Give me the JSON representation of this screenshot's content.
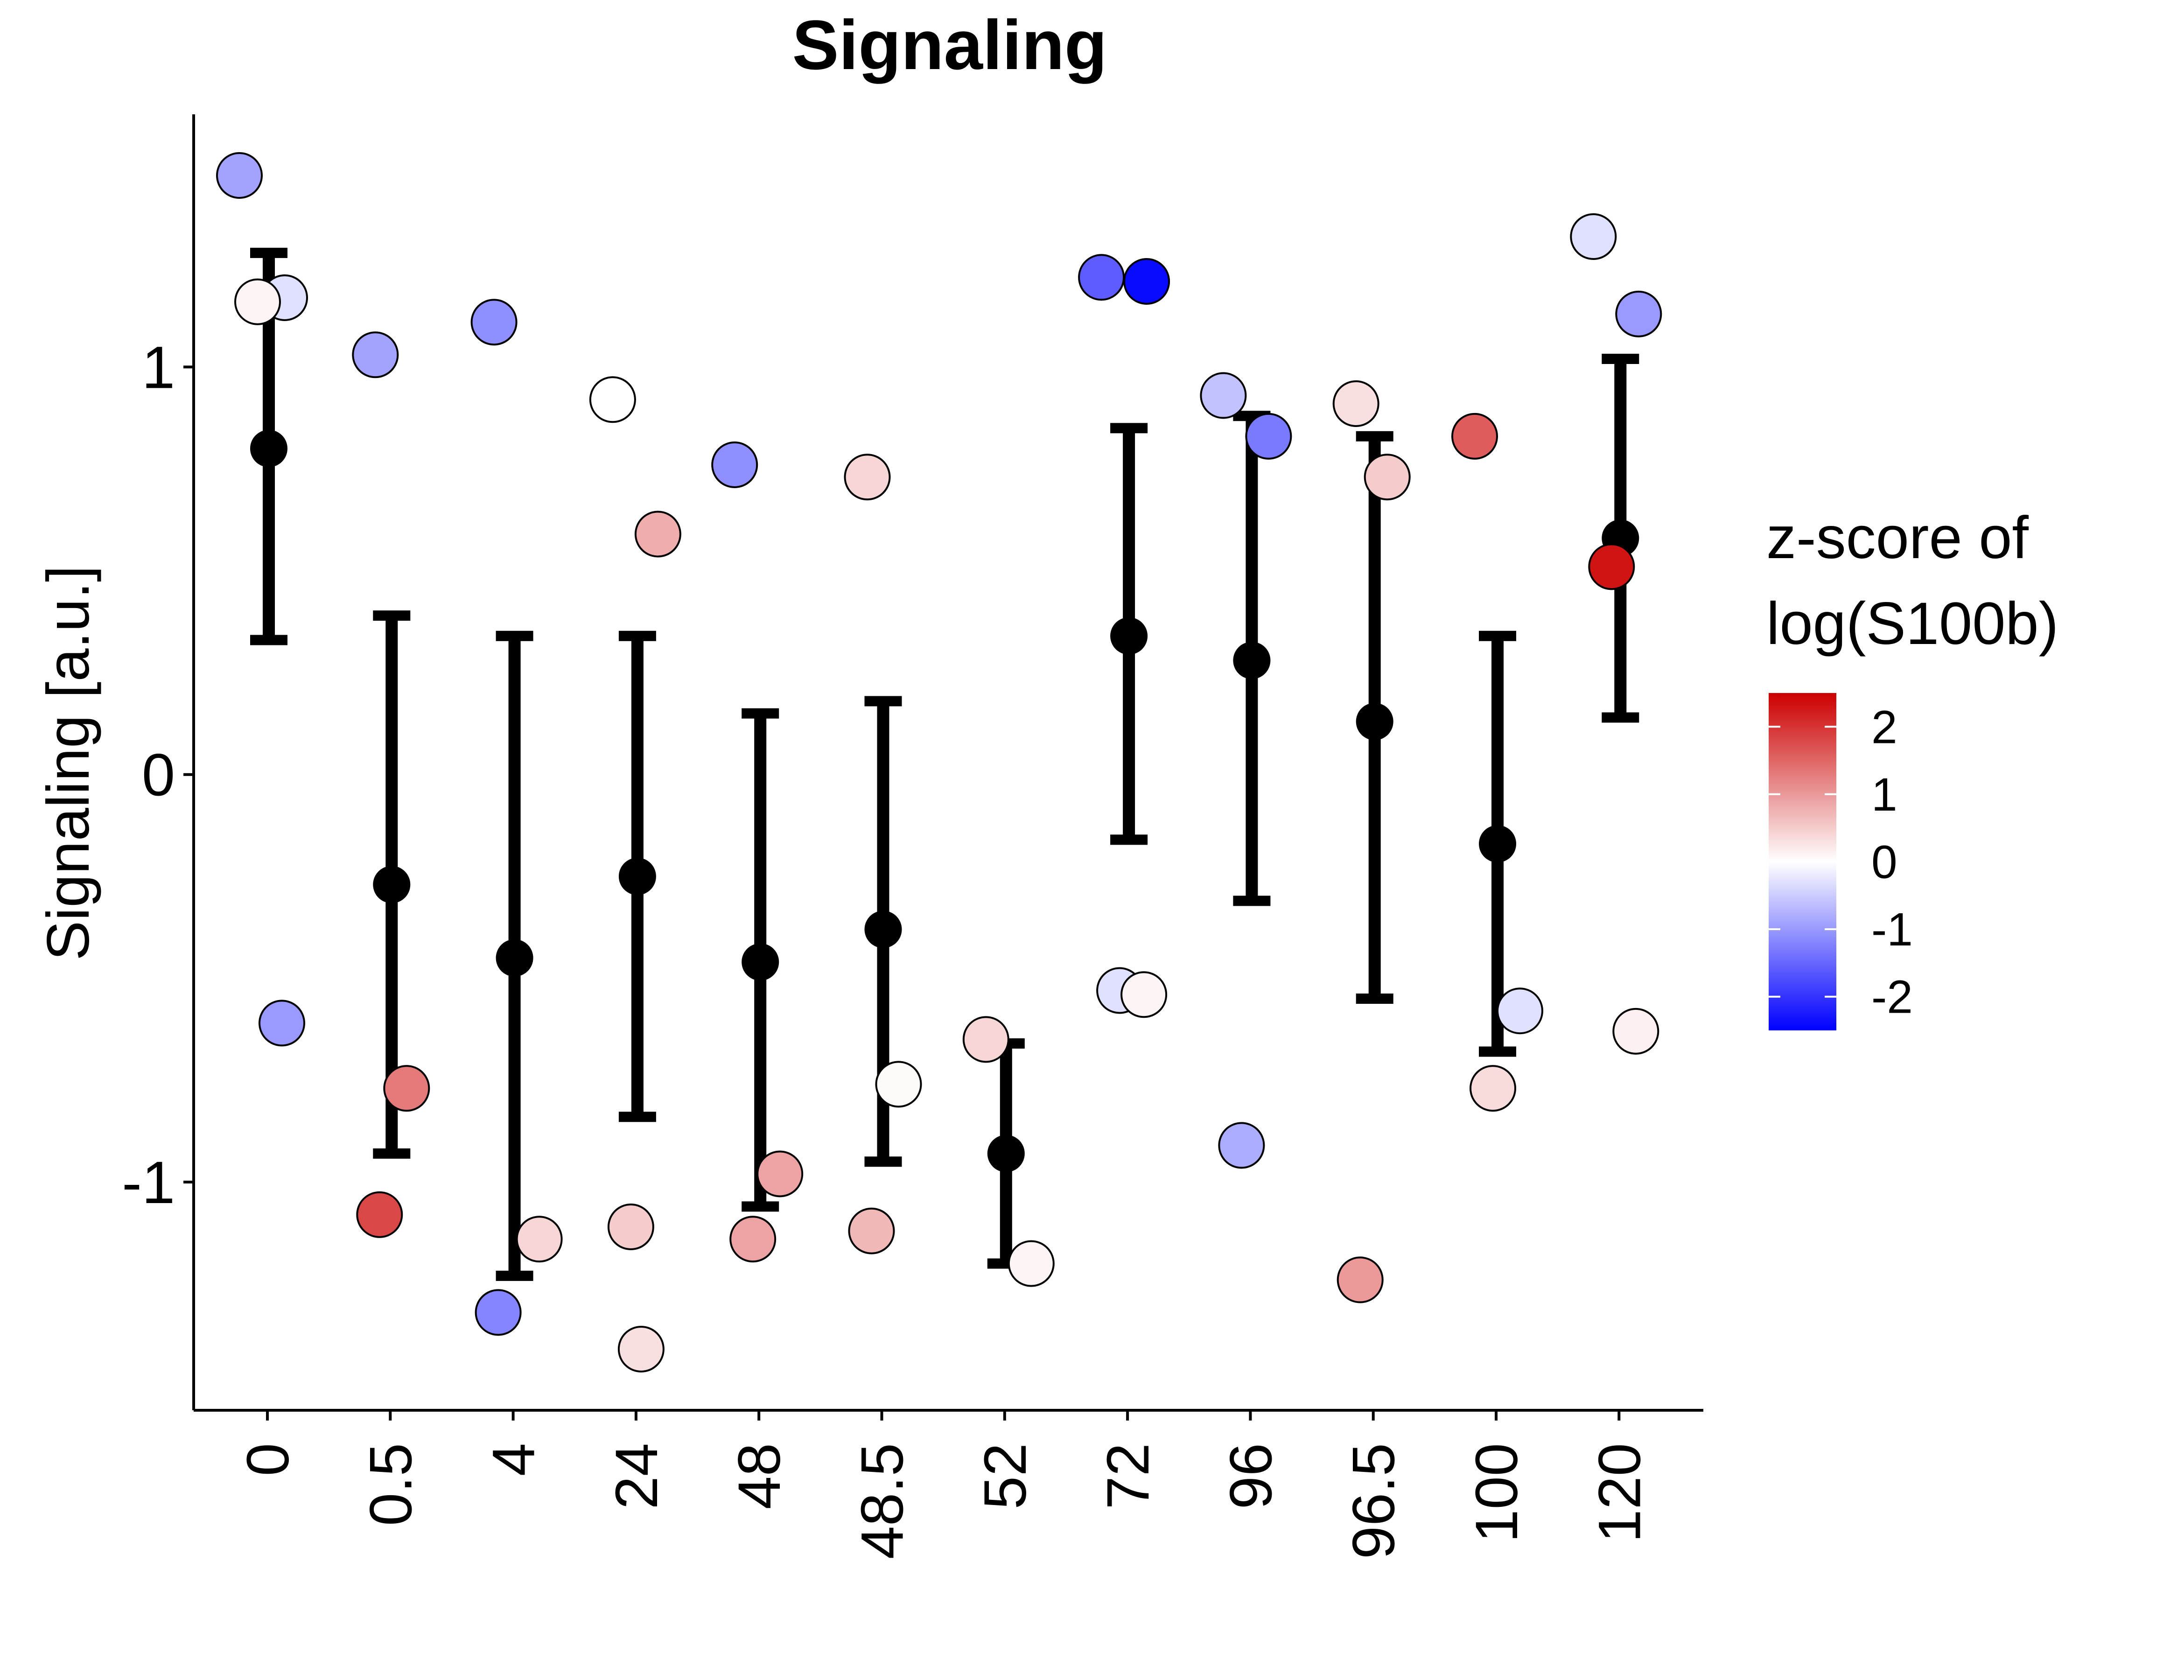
{
  "chart_data": {
    "type": "scatter",
    "title": "Signaling",
    "xlabel": "",
    "ylabel": "Signaling [a.u.]",
    "categories": [
      "0",
      "0.5",
      "4",
      "24",
      "48",
      "48.5",
      "52",
      "72",
      "96",
      "96.5",
      "100",
      "120"
    ],
    "ylim": [
      -1.56,
      1.62
    ],
    "y_ticks": [
      -1,
      0,
      1
    ],
    "y_tick_labels": [
      "-1",
      "0",
      "1"
    ],
    "grid": false,
    "points": [
      {
        "category": "0",
        "y": 1.47,
        "z": -0.9
      },
      {
        "category": "0",
        "y": 1.17,
        "z": -0.3
      },
      {
        "category": "0",
        "y": 1.16,
        "z": 0.1
      },
      {
        "category": "0",
        "y": -0.61,
        "z": -1.0
      },
      {
        "category": "0.5",
        "y": 1.03,
        "z": -0.9
      },
      {
        "category": "0.5",
        "y": -0.77,
        "z": 1.3
      },
      {
        "category": "0.5",
        "y": -1.08,
        "z": 1.8
      },
      {
        "category": "4",
        "y": 1.11,
        "z": -1.1
      },
      {
        "category": "4",
        "y": -1.14,
        "z": 0.4
      },
      {
        "category": "4",
        "y": -1.32,
        "z": -1.2
      },
      {
        "category": "24",
        "y": 0.92,
        "z": 0.0
      },
      {
        "category": "24",
        "y": 0.59,
        "z": 0.8
      },
      {
        "category": "24",
        "y": -1.11,
        "z": 0.5
      },
      {
        "category": "24",
        "y": -1.41,
        "z": 0.3
      },
      {
        "category": "48",
        "y": 0.76,
        "z": -1.1
      },
      {
        "category": "48",
        "y": -0.98,
        "z": 0.9
      },
      {
        "category": "48",
        "y": -1.14,
        "z": 0.9
      },
      {
        "category": "48.5",
        "y": 0.73,
        "z": 0.4
      },
      {
        "category": "48.5",
        "y": -0.76,
        "z": 0.05
      },
      {
        "category": "48.5",
        "y": -1.12,
        "z": 0.7
      },
      {
        "category": "52",
        "y": -0.65,
        "z": 0.4
      },
      {
        "category": "52",
        "y": -1.2,
        "z": 0.1
      },
      {
        "category": "72",
        "y": 1.22,
        "z": -1.6
      },
      {
        "category": "72",
        "y": 1.21,
        "z": -2.4
      },
      {
        "category": "72",
        "y": -0.53,
        "z": -0.3
      },
      {
        "category": "72",
        "y": -0.54,
        "z": 0.1
      },
      {
        "category": "96",
        "y": 0.93,
        "z": -0.6
      },
      {
        "category": "96",
        "y": 0.83,
        "z": -1.3
      },
      {
        "category": "96",
        "y": -0.91,
        "z": -0.8
      },
      {
        "category": "96.5",
        "y": 0.91,
        "z": 0.3
      },
      {
        "category": "96.5",
        "y": 0.73,
        "z": 0.5
      },
      {
        "category": "96.5",
        "y": -1.24,
        "z": 1.0
      },
      {
        "category": "100",
        "y": 0.83,
        "z": 1.6
      },
      {
        "category": "100",
        "y": -0.58,
        "z": -0.3
      },
      {
        "category": "100",
        "y": -0.77,
        "z": 0.35
      },
      {
        "category": "120",
        "y": 1.32,
        "z": -0.3
      },
      {
        "category": "120",
        "y": 1.13,
        "z": -1.0
      },
      {
        "category": "120",
        "y": 0.51,
        "z": 2.3
      },
      {
        "category": "120",
        "y": -0.63,
        "z": 0.15
      }
    ],
    "summary": [
      {
        "category": "0",
        "mean": 0.8,
        "lower": 0.33,
        "upper": 1.28
      },
      {
        "category": "0.5",
        "mean": -0.27,
        "lower": -0.93,
        "upper": 0.39
      },
      {
        "category": "4",
        "mean": -0.45,
        "lower": -1.23,
        "upper": 0.34
      },
      {
        "category": "24",
        "mean": -0.25,
        "lower": -0.84,
        "upper": 0.34
      },
      {
        "category": "48",
        "mean": -0.46,
        "lower": -1.06,
        "upper": 0.15
      },
      {
        "category": "48.5",
        "mean": -0.38,
        "lower": -0.95,
        "upper": 0.18
      },
      {
        "category": "52",
        "mean": -0.93,
        "lower": -1.2,
        "upper": -0.66
      },
      {
        "category": "72",
        "mean": 0.34,
        "lower": -0.16,
        "upper": 0.85
      },
      {
        "category": "96",
        "mean": 0.28,
        "lower": -0.31,
        "upper": 0.88
      },
      {
        "category": "96.5",
        "mean": 0.13,
        "lower": -0.55,
        "upper": 0.83
      },
      {
        "category": "100",
        "mean": -0.17,
        "lower": -0.68,
        "upper": 0.34
      },
      {
        "category": "120",
        "mean": 0.58,
        "lower": 0.14,
        "upper": 1.02
      }
    ],
    "legend": {
      "title_line1": "z-score of",
      "title_line2": "log(S100b)",
      "range": [
        -2.5,
        2.5
      ],
      "ticks": [
        2,
        1,
        0,
        -1,
        -2
      ],
      "tick_labels": [
        "2",
        "1",
        "0",
        "-1",
        "-2"
      ],
      "colors": {
        "low": "#0000ff",
        "mid": "#ffffff",
        "high": "#cc0000"
      },
      "position": "right"
    },
    "colors": {
      "summary": "#000000",
      "point_stroke": "#000000",
      "axis": "#000000"
    }
  }
}
